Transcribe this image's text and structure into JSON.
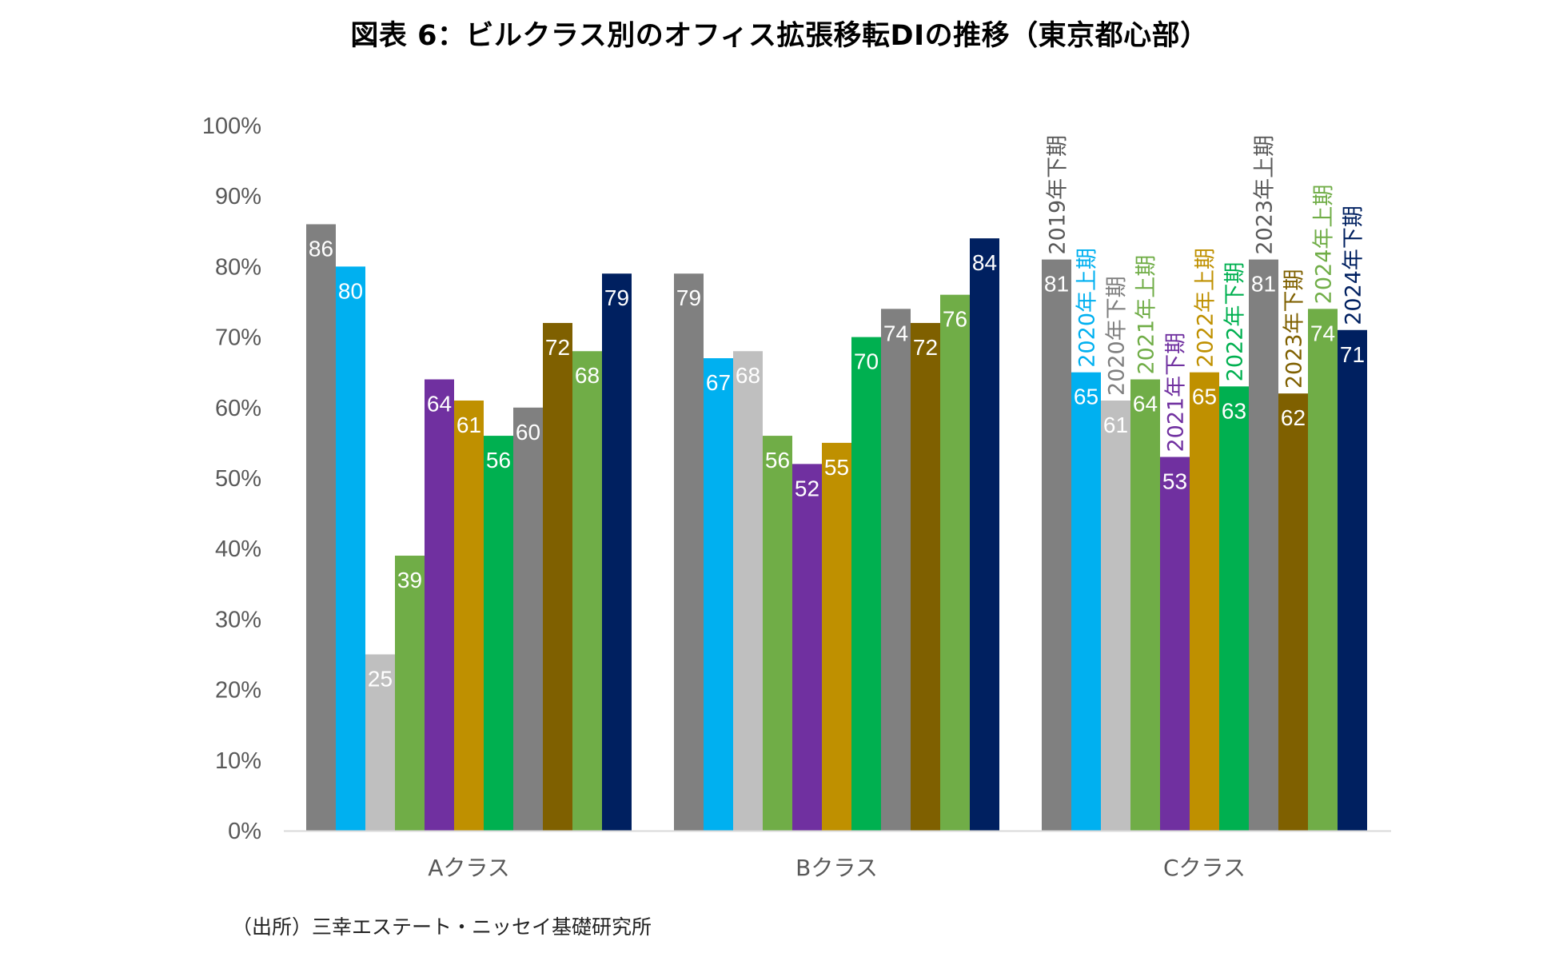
{
  "title": "図表 6：ビルクラス別のオフィス拡張移転DIの推移（東京都心部）",
  "source": "（出所）三幸エステート・ニッセイ基礎研究所",
  "chart_data": {
    "type": "bar",
    "title": "図表 6：ビルクラス別のオフィス拡張移転DIの推移（東京都心部）",
    "xlabel": "",
    "ylabel": "",
    "ylim": [
      0,
      100
    ],
    "yticks": [
      "0%",
      "10%",
      "20%",
      "30%",
      "40%",
      "50%",
      "60%",
      "70%",
      "80%",
      "90%",
      "100%"
    ],
    "grid": false,
    "legend": "inline-labels-on-Cクラス",
    "categories": [
      "Aクラス",
      "Bクラス",
      "Cクラス"
    ],
    "series": [
      {
        "name": "2019年下期",
        "color": "#808080",
        "label_color": "#595959",
        "values": [
          86,
          79,
          81
        ]
      },
      {
        "name": "2020年上期",
        "color": "#00B0F0",
        "label_color": "#00B0F0",
        "values": [
          80,
          67,
          65
        ]
      },
      {
        "name": "2020年下期",
        "color": "#BFBFBF",
        "label_color": "#7F7F7F",
        "values": [
          25,
          68,
          61
        ]
      },
      {
        "name": "2021年上期",
        "color": "#70AD47",
        "label_color": "#70AD47",
        "values": [
          39,
          56,
          64
        ]
      },
      {
        "name": "2021年下期",
        "color": "#7030A0",
        "label_color": "#7030A0",
        "values": [
          64,
          52,
          53
        ]
      },
      {
        "name": "2022年上期",
        "color": "#BF9000",
        "label_color": "#BF9000",
        "values": [
          61,
          55,
          65
        ]
      },
      {
        "name": "2022年下期",
        "color": "#00B050",
        "label_color": "#00B050",
        "values": [
          56,
          70,
          63
        ]
      },
      {
        "name": "2023年上期",
        "color": "#808080",
        "label_color": "#595959",
        "values": [
          60,
          74,
          81
        ]
      },
      {
        "name": "2023年下期",
        "color": "#7F6000",
        "label_color": "#7F6000",
        "values": [
          72,
          72,
          62
        ]
      },
      {
        "name": "2024年上期",
        "color": "#70AD47",
        "label_color": "#70AD47",
        "values": [
          68,
          76,
          74
        ]
      },
      {
        "name": "2024年下期",
        "color": "#002060",
        "label_color": "#002060",
        "values": [
          79,
          84,
          71
        ]
      }
    ]
  }
}
